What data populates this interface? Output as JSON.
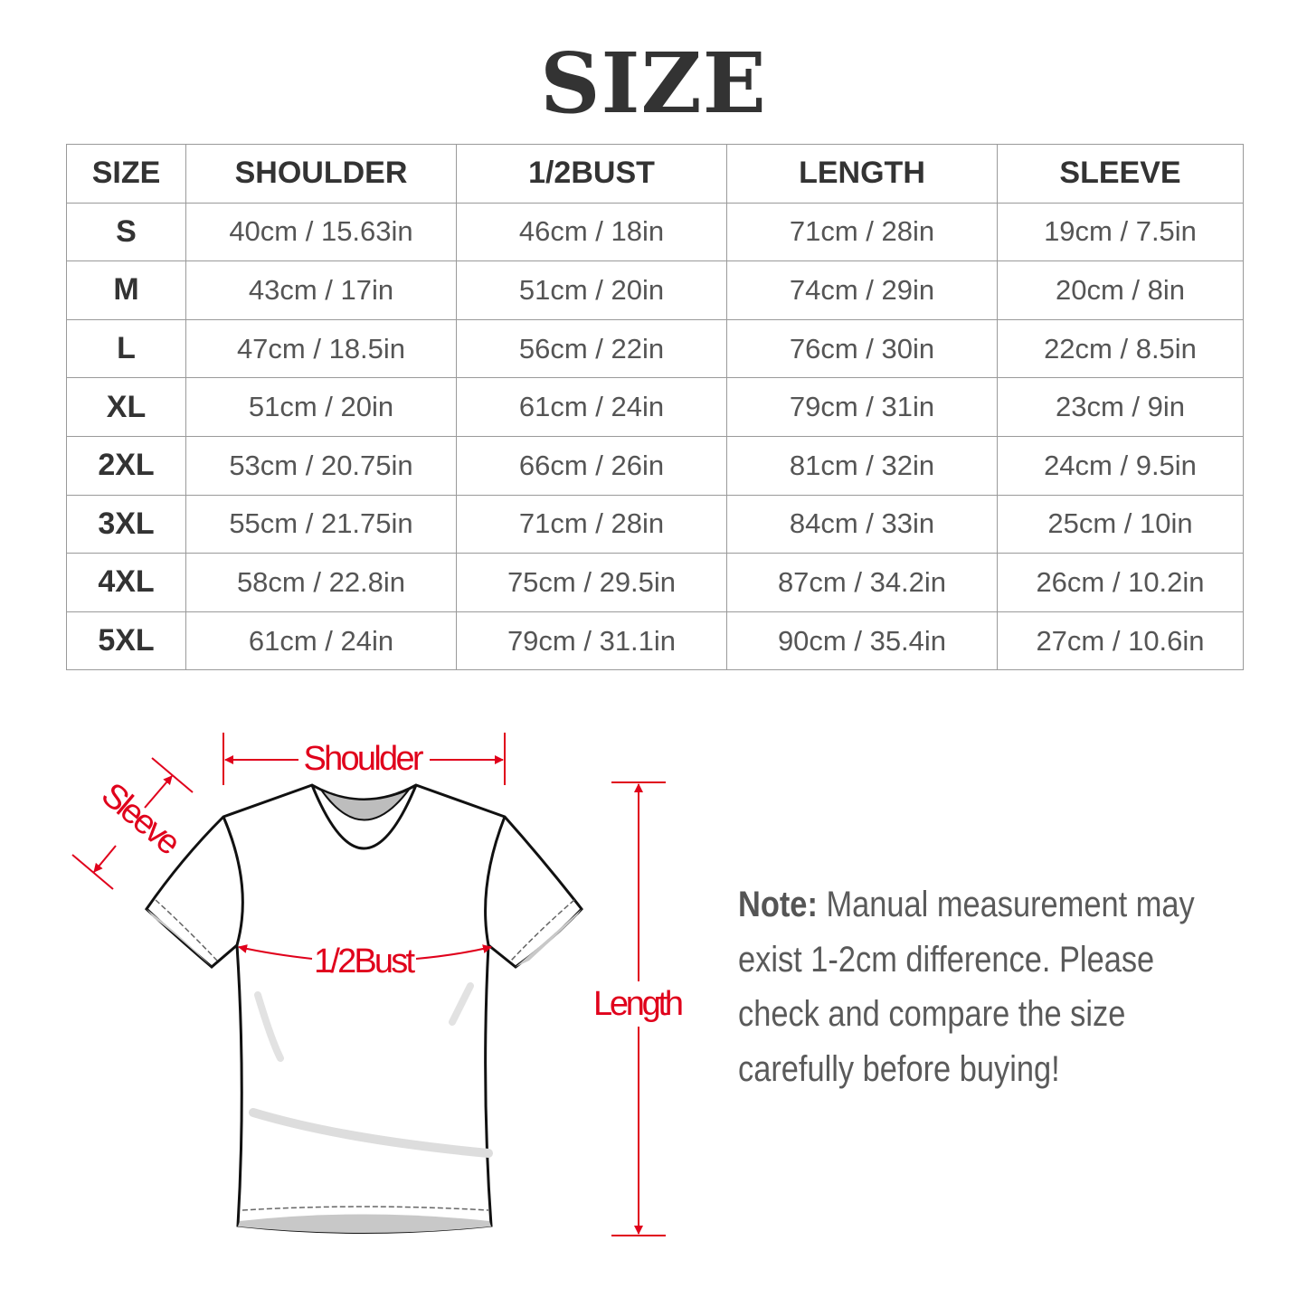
{
  "title": "SIZE",
  "table": {
    "headers": [
      "SIZE",
      "SHOULDER",
      "1/2BUST",
      "LENGTH",
      "SLEEVE"
    ],
    "rows": [
      [
        "S",
        "40cm / 15.63in",
        "46cm / 18in",
        "71cm / 28in",
        "19cm / 7.5in"
      ],
      [
        "M",
        "43cm / 17in",
        "51cm / 20in",
        "74cm / 29in",
        "20cm / 8in"
      ],
      [
        "L",
        "47cm / 18.5in",
        "56cm / 22in",
        "76cm / 30in",
        "22cm / 8.5in"
      ],
      [
        "XL",
        "51cm / 20in",
        "61cm / 24in",
        "79cm / 31in",
        "23cm / 9in"
      ],
      [
        "2XL",
        "53cm / 20.75in",
        "66cm / 26in",
        "81cm / 32in",
        "24cm / 9.5in"
      ],
      [
        "3XL",
        "55cm / 21.75in",
        "71cm / 28in",
        "84cm / 33in",
        "25cm / 10in"
      ],
      [
        "4XL",
        "58cm / 22.8in",
        "75cm / 29.5in",
        "87cm / 34.2in",
        "26cm / 10.2in"
      ],
      [
        "5XL",
        "61cm / 24in",
        "79cm / 31.1in",
        "90cm / 35.4in",
        "27cm / 10.6in"
      ]
    ]
  },
  "diagram": {
    "shoulder": "Shoulder",
    "sleeve": "Sleeve",
    "bust": "1/2Bust",
    "length": "Length",
    "accent_color": "#e0001b"
  },
  "note": {
    "label": "Note:",
    "lines": [
      " Manual measurement may",
      "exist 1-2cm difference. Please",
      "check and compare the size",
      "carefully before buying!"
    ]
  }
}
